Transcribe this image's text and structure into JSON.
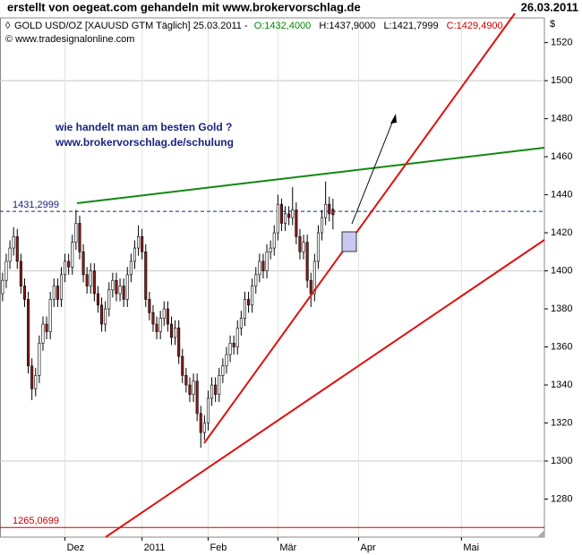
{
  "chart_data": {
    "type": "candlestick",
    "title": "erstellt von oegeat.com gehandeln mit www.brokervorschlag.de",
    "date": "26.03.2011",
    "header": {
      "instrument": "GOLD USD/OZ [XAUUSD GTM  Täglich] 25.03.2011 -",
      "open": "O:1432,4000",
      "high": "H:1437,9000",
      "low": "L:1421,7999",
      "close": "C:1429,4900"
    },
    "copyright": "© www.tradesignalonline.com",
    "annotation": [
      "wie handelt man am besten Gold ?",
      "www.brokervorschlag.de/schulung"
    ],
    "y_unit": "$",
    "categories": [
      null,
      null,
      null,
      null,
      null,
      null,
      null,
      null,
      null,
      null,
      null,
      null,
      null,
      null,
      null,
      null,
      null,
      null,
      null,
      null,
      null,
      null,
      null,
      null,
      null,
      null,
      null,
      null,
      null,
      null,
      null,
      null,
      null,
      null,
      null,
      null,
      null,
      null,
      null,
      null,
      null,
      null,
      null,
      null,
      null,
      null,
      null,
      null,
      null,
      null,
      null,
      null,
      null,
      null,
      null,
      null,
      null,
      null,
      null,
      null,
      null,
      null,
      null,
      null,
      null,
      null,
      null,
      null,
      null,
      null,
      null,
      null,
      null,
      null,
      null,
      null,
      null,
      null,
      null,
      null,
      null,
      null,
      null,
      null,
      null,
      null,
      null,
      null,
      null,
      null,
      null
    ],
    "open": [
      1388,
      1395,
      1405,
      1412,
      1418,
      1405,
      1392,
      1385,
      1350,
      1338,
      1345,
      1362,
      1372,
      1368,
      1385,
      1392,
      1385,
      1398,
      1405,
      1402,
      1415,
      1425,
      1410,
      1398,
      1392,
      1400,
      1388,
      1382,
      1372,
      1380,
      1390,
      1395,
      1388,
      1392,
      1385,
      1398,
      1405,
      1412,
      1418,
      1410,
      1385,
      1378,
      1372,
      1368,
      1375,
      1380,
      1372,
      1365,
      1370,
      1355,
      1345,
      1340,
      1335,
      1342,
      1325,
      1315,
      1320,
      1333,
      1340,
      1335,
      1345,
      1350,
      1356,
      1362,
      1360,
      1370,
      1375,
      1385,
      1382,
      1392,
      1398,
      1405,
      1400,
      1410,
      1412,
      1420,
      1435,
      1425,
      1430,
      1428,
      1432,
      1418,
      1410,
      1415,
      1395,
      1388,
      1405,
      1420,
      1428,
      1435,
      1432.4
    ],
    "high": [
      1399,
      1409,
      1416,
      1423,
      1422,
      1409,
      1396,
      1389,
      1354,
      1349,
      1366,
      1376,
      1376,
      1389,
      1396,
      1396,
      1402,
      1409,
      1409,
      1419,
      1432,
      1429,
      1414,
      1402,
      1404,
      1404,
      1392,
      1386,
      1384,
      1394,
      1399,
      1399,
      1396,
      1396,
      1402,
      1409,
      1416,
      1424,
      1422,
      1414,
      1389,
      1382,
      1376,
      1379,
      1384,
      1384,
      1376,
      1374,
      1374,
      1359,
      1349,
      1344,
      1346,
      1346,
      1329,
      1324,
      1337,
      1344,
      1344,
      1349,
      1354,
      1360,
      1366,
      1366,
      1374,
      1379,
      1389,
      1389,
      1396,
      1402,
      1409,
      1409,
      1414,
      1416,
      1424,
      1440,
      1438,
      1434,
      1434,
      1444,
      1436,
      1422,
      1419,
      1419,
      1399,
      1409,
      1424,
      1432,
      1447,
      1439,
      1437.9
    ],
    "low": [
      1384,
      1391,
      1401,
      1408,
      1401,
      1388,
      1381,
      1346,
      1332,
      1334,
      1341,
      1358,
      1364,
      1364,
      1381,
      1381,
      1381,
      1394,
      1398,
      1398,
      1411,
      1406,
      1394,
      1388,
      1388,
      1384,
      1378,
      1368,
      1368,
      1376,
      1386,
      1384,
      1384,
      1381,
      1381,
      1394,
      1401,
      1408,
      1406,
      1381,
      1374,
      1368,
      1364,
      1364,
      1371,
      1368,
      1361,
      1361,
      1351,
      1341,
      1336,
      1331,
      1331,
      1321,
      1307,
      1311,
      1316,
      1329,
      1331,
      1331,
      1341,
      1346,
      1352,
      1356,
      1356,
      1366,
      1371,
      1378,
      1378,
      1388,
      1394,
      1396,
      1396,
      1406,
      1408,
      1416,
      1421,
      1421,
      1424,
      1424,
      1414,
      1406,
      1406,
      1391,
      1381,
      1384,
      1401,
      1416,
      1424,
      1426,
      1421.7999
    ],
    "close": [
      1395,
      1405,
      1412,
      1418,
      1405,
      1392,
      1385,
      1350,
      1338,
      1345,
      1362,
      1372,
      1368,
      1385,
      1392,
      1385,
      1398,
      1405,
      1402,
      1415,
      1425,
      1410,
      1398,
      1392,
      1400,
      1388,
      1382,
      1372,
      1380,
      1390,
      1395,
      1388,
      1392,
      1385,
      1398,
      1405,
      1412,
      1418,
      1410,
      1385,
      1378,
      1372,
      1368,
      1375,
      1380,
      1372,
      1365,
      1370,
      1355,
      1345,
      1340,
      1335,
      1342,
      1325,
      1315,
      1320,
      1333,
      1340,
      1335,
      1345,
      1350,
      1356,
      1362,
      1360,
      1370,
      1375,
      1385,
      1382,
      1392,
      1398,
      1405,
      1400,
      1410,
      1412,
      1420,
      1435,
      1425,
      1430,
      1428,
      1432,
      1418,
      1410,
      1415,
      1395,
      1388,
      1405,
      1420,
      1428,
      1435,
      1430,
      1429.49
    ],
    "up_color": "#ffffff",
    "down_color": "#8b1a1a",
    "xlim": [
      -0.7,
      147.6
    ],
    "xticks": [
      {
        "value": 17,
        "label": "Dez"
      },
      {
        "value": 38,
        "label": "2011"
      },
      {
        "value": 56,
        "label": "Feb"
      },
      {
        "value": 75,
        "label": "Mär"
      },
      {
        "value": 97,
        "label": "Apr"
      },
      {
        "value": 125,
        "label": "Mai"
      }
    ],
    "ylim": [
      1260,
      1533
    ],
    "yticks": [
      1280,
      1300,
      1320,
      1340,
      1360,
      1380,
      1400,
      1420,
      1440,
      1460,
      1480,
      1500,
      1520
    ],
    "grid": true,
    "levels": [
      {
        "value": 1431.2999,
        "label": "1431,2999",
        "color": "#1a237e"
      },
      {
        "value": 1265.0699,
        "label": "1265,0699",
        "color": "#cc0000"
      }
    ]
  }
}
